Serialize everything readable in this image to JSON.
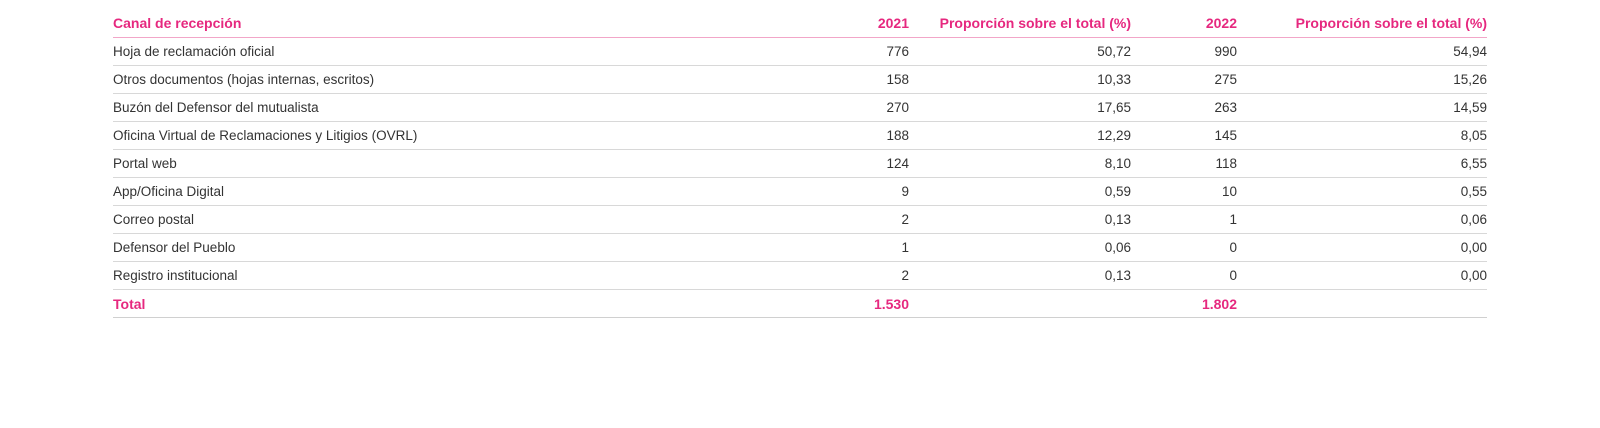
{
  "table": {
    "headers": [
      "Canal de recepción",
      "2021",
      "Proporción sobre el total (%)",
      "2022",
      "Proporción sobre el total (%)"
    ],
    "rows": [
      [
        "Hoja de reclamación oficial",
        "776",
        "50,72",
        "990",
        "54,94"
      ],
      [
        "Otros documentos (hojas internas, escritos)",
        "158",
        "10,33",
        "275",
        "15,26"
      ],
      [
        "Buzón del Defensor del mutualista",
        "270",
        "17,65",
        "263",
        "14,59"
      ],
      [
        "Oficina Virtual de Reclamaciones y Litigios (OVRL)",
        "188",
        "12,29",
        "145",
        "8,05"
      ],
      [
        "Portal web",
        "124",
        "8,10",
        "118",
        "6,55"
      ],
      [
        "App/Oficina Digital",
        "9",
        "0,59",
        "10",
        "0,55"
      ],
      [
        "Correo postal",
        "2",
        "0,13",
        "1",
        "0,06"
      ],
      [
        "Defensor del Pueblo",
        "1",
        "0,06",
        "0",
        "0,00"
      ],
      [
        "Registro institucional",
        "2",
        "0,13",
        "0",
        "0,00"
      ]
    ],
    "total": [
      "Total",
      "1.530",
      "",
      "1.802",
      ""
    ]
  },
  "colors": {
    "accent": "#e6287f",
    "text": "#333333",
    "rule": "#d8d8d8"
  }
}
